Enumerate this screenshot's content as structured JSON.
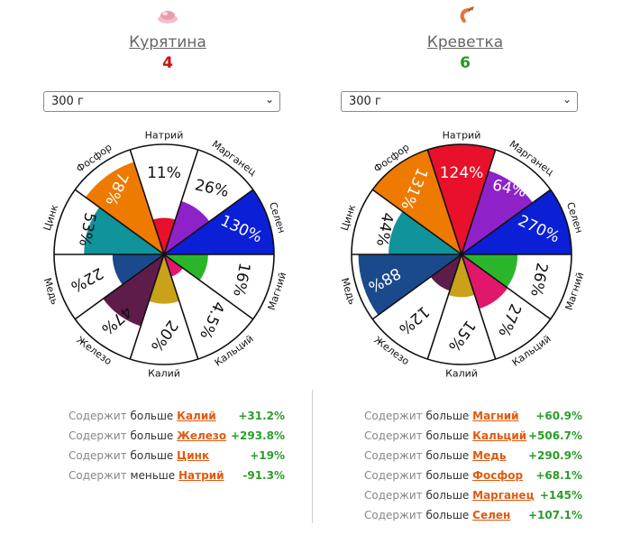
{
  "left": {
    "name": "Курятина",
    "score": "4",
    "portion": "300 г",
    "icon": "chicken-icon",
    "comparisons": [
      {
        "prefix": "Содержит",
        "word": "больше",
        "nutrient": "Калий",
        "value": "+31.2%"
      },
      {
        "prefix": "Содержит",
        "word": "больше",
        "nutrient": "Железо",
        "value": "+293.8%"
      },
      {
        "prefix": "Содержит",
        "word": "больше",
        "nutrient": "Цинк",
        "value": "+19%"
      },
      {
        "prefix": "Содержит",
        "word": "меньше",
        "nutrient": "Натрий",
        "value": "-91.3%"
      }
    ]
  },
  "right": {
    "name": "Креветка",
    "score": "6",
    "portion": "300 г",
    "icon": "shrimp-icon",
    "comparisons": [
      {
        "prefix": "Содержит",
        "word": "больше",
        "nutrient": "Магний",
        "value": "+60.9%"
      },
      {
        "prefix": "Содержит",
        "word": "больше",
        "nutrient": "Кальций",
        "value": "+506.7%"
      },
      {
        "prefix": "Содержит",
        "word": "больше",
        "nutrient": "Медь",
        "value": "+290.9%"
      },
      {
        "prefix": "Содержит",
        "word": "больше",
        "nutrient": "Фосфор",
        "value": "+68.1%"
      },
      {
        "prefix": "Содержит",
        "word": "больше",
        "nutrient": "Марганец",
        "value": "+145%"
      },
      {
        "prefix": "Содержит",
        "word": "больше",
        "nutrient": "Селен",
        "value": "+107.1%"
      }
    ]
  },
  "chart_data": [
    {
      "type": "polar-area",
      "food": "Курятина",
      "categories": [
        "Натрий",
        "Марганец",
        "Селен",
        "Магний",
        "Кальций",
        "Калий",
        "Железо",
        "Медь",
        "Цинк",
        "Фосфор"
      ],
      "values": [
        11,
        26,
        130,
        16,
        4.5,
        20,
        47,
        22,
        53,
        78
      ],
      "labels": [
        "11%",
        "26%",
        "130%",
        "16%",
        "4.5%",
        "20%",
        "47%",
        "22%",
        "53%",
        "78%"
      ],
      "colors": [
        "#e8102a",
        "#8e22c8",
        "#0a1fd6",
        "#2ab52a",
        "#e0176a",
        "#c9a21a",
        "#5e1c4a",
        "#1a4a8c",
        "#10939b",
        "#ee7a00"
      ],
      "max": 100
    },
    {
      "type": "polar-area",
      "food": "Креветка",
      "categories": [
        "Натрий",
        "Марганец",
        "Селен",
        "Магний",
        "Кальций",
        "Калий",
        "Железо",
        "Медь",
        "Цинк",
        "Фосфор"
      ],
      "values": [
        124,
        64,
        270,
        26,
        27,
        15,
        12,
        88,
        44,
        131
      ],
      "labels": [
        "124%",
        "64%",
        "270%",
        "26%",
        "27%",
        "15%",
        "12%",
        "88%",
        "44%",
        "131%"
      ],
      "colors": [
        "#e8102a",
        "#8e22c8",
        "#0a1fd6",
        "#2ab52a",
        "#e0176a",
        "#c9a21a",
        "#5e1c4a",
        "#1a4a8c",
        "#10939b",
        "#ee7a00"
      ],
      "max": 100
    }
  ]
}
